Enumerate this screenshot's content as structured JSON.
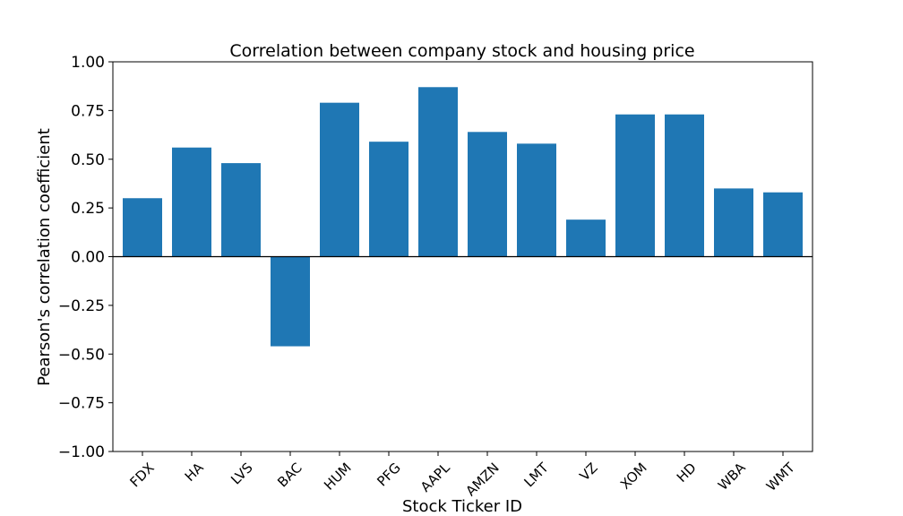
{
  "chart_data": {
    "type": "bar",
    "title": "Correlation between company stock and housing price",
    "xlabel": "Stock Ticker ID",
    "ylabel": "Pearson's correlation coefficient",
    "categories": [
      "FDX",
      "HA",
      "LVS",
      "BAC",
      "HUM",
      "PFG",
      "AAPL",
      "AMZN",
      "LMT",
      "VZ",
      "XOM",
      "HD",
      "WBA",
      "WMT"
    ],
    "values": [
      0.3,
      0.56,
      0.48,
      -0.46,
      0.79,
      0.59,
      0.87,
      0.64,
      0.58,
      0.19,
      0.73,
      0.73,
      0.35,
      0.33
    ],
    "ylim": [
      -1.0,
      1.0
    ],
    "yticks": [
      -1.0,
      -0.75,
      -0.5,
      -0.25,
      0.0,
      0.25,
      0.5,
      0.75,
      1.0
    ],
    "ytick_labels": [
      "−1.00",
      "−0.75",
      "−0.50",
      "−0.25",
      "0.00",
      "0.25",
      "0.50",
      "0.75",
      "1.00"
    ],
    "xtick_rotation_deg": -45,
    "bar_color": "#1f77b4",
    "zero_line_color": "#000000",
    "grid": false,
    "legend": "none"
  }
}
